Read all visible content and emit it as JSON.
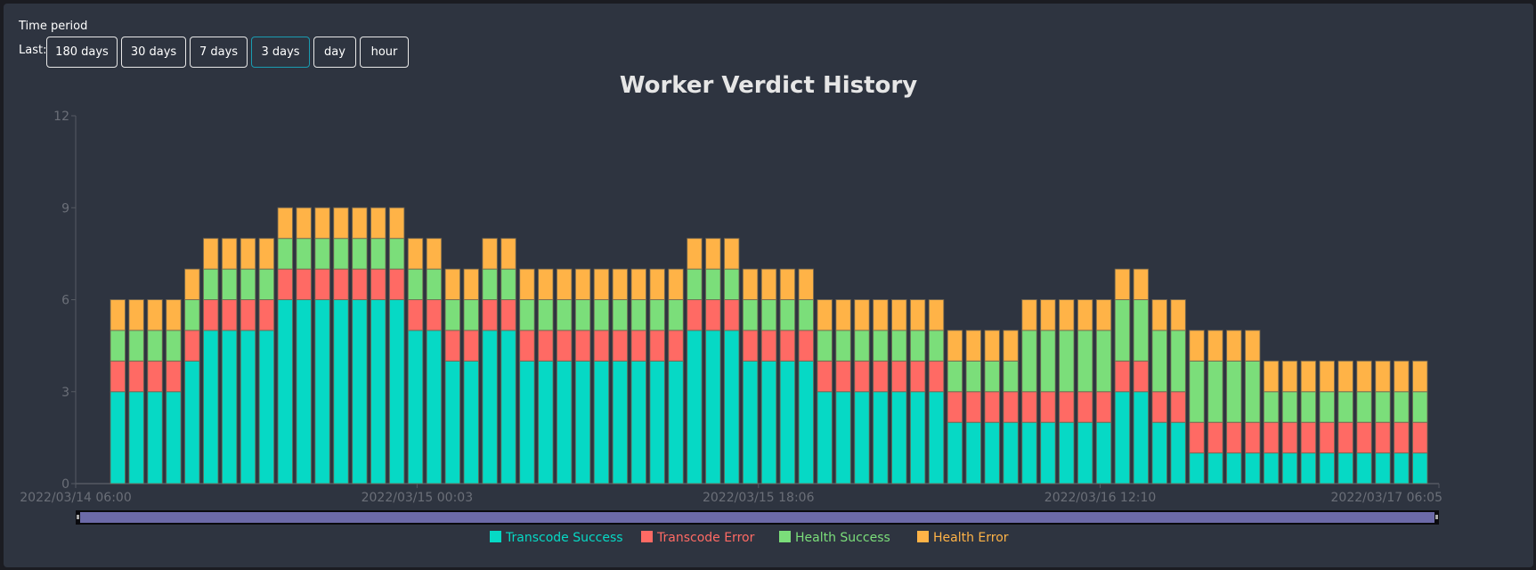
{
  "controls": {
    "time_period_label": "Time period",
    "last_label": "Last:",
    "buttons": [
      "180 days",
      "30 days",
      "7 days",
      "3 days",
      "day",
      "hour"
    ],
    "active_button": "3 days"
  },
  "colors": {
    "background": "#2e3440",
    "transcode_success": "#06d9c5",
    "transcode_error": "#ff6a64",
    "health_success": "#7bde7a",
    "health_error": "#ffb347",
    "zoom_slider": "#6c6aa8"
  },
  "chart_data": {
    "type": "bar",
    "stacked": true,
    "title": "Worker Verdict History",
    "xlabel": "",
    "ylabel": "",
    "ylim": [
      0,
      12
    ],
    "yticks": [
      0,
      3,
      6,
      9,
      12
    ],
    "x_range_hours": [
      0,
      72.083
    ],
    "xticks": [
      {
        "label": "2022/03/14 06:00",
        "hours": 0
      },
      {
        "label": "2022/03/15 00:03",
        "hours": 18.05
      },
      {
        "label": "2022/03/15 18:06",
        "hours": 36.1
      },
      {
        "label": "2022/03/16 12:10",
        "hours": 54.17
      },
      {
        "label": "2022/03/17 06:05",
        "hours": 72.083
      }
    ],
    "grid": false,
    "legend_position": "bottom",
    "series": [
      {
        "name": "Transcode Success",
        "color": "#06d9c5",
        "values": [
          3,
          3,
          3,
          3,
          4,
          5,
          5,
          5,
          5,
          6,
          6,
          6,
          6,
          6,
          6,
          6,
          5,
          5,
          4,
          4,
          5,
          5,
          4,
          4,
          4,
          4,
          4,
          4,
          4,
          4,
          4,
          5,
          5,
          5,
          4,
          4,
          4,
          4,
          3,
          3,
          3,
          3,
          3,
          3,
          3,
          2,
          2,
          2,
          2,
          2,
          2,
          2,
          2,
          2,
          3,
          3,
          2,
          2,
          1,
          1,
          1,
          1,
          1,
          1,
          1,
          1,
          1,
          1,
          1,
          1,
          1
        ]
      },
      {
        "name": "Transcode Error",
        "color": "#ff6a64",
        "values": [
          1,
          1,
          1,
          1,
          1,
          1,
          1,
          1,
          1,
          1,
          1,
          1,
          1,
          1,
          1,
          1,
          1,
          1,
          1,
          1,
          1,
          1,
          1,
          1,
          1,
          1,
          1,
          1,
          1,
          1,
          1,
          1,
          1,
          1,
          1,
          1,
          1,
          1,
          1,
          1,
          1,
          1,
          1,
          1,
          1,
          1,
          1,
          1,
          1,
          1,
          1,
          1,
          1,
          1,
          1,
          1,
          1,
          1,
          1,
          1,
          1,
          1,
          1,
          1,
          1,
          1,
          1,
          1,
          1,
          1,
          1
        ]
      },
      {
        "name": "Health Success",
        "color": "#7bde7a",
        "values": [
          1,
          1,
          1,
          1,
          1,
          1,
          1,
          1,
          1,
          1,
          1,
          1,
          1,
          1,
          1,
          1,
          1,
          1,
          1,
          1,
          1,
          1,
          1,
          1,
          1,
          1,
          1,
          1,
          1,
          1,
          1,
          1,
          1,
          1,
          1,
          1,
          1,
          1,
          1,
          1,
          1,
          1,
          1,
          1,
          1,
          1,
          1,
          1,
          1,
          2,
          2,
          2,
          2,
          2,
          2,
          2,
          2,
          2,
          2,
          2,
          2,
          2,
          1,
          1,
          1,
          1,
          1,
          1,
          1,
          1,
          1
        ]
      },
      {
        "name": "Health Error",
        "color": "#ffb347",
        "values": [
          1,
          1,
          1,
          1,
          1,
          1,
          1,
          1,
          1,
          1,
          1,
          1,
          1,
          1,
          1,
          1,
          1,
          1,
          1,
          1,
          1,
          1,
          1,
          1,
          1,
          1,
          1,
          1,
          1,
          1,
          1,
          1,
          1,
          1,
          1,
          1,
          1,
          1,
          1,
          1,
          1,
          1,
          1,
          1,
          1,
          1,
          1,
          1,
          1,
          1,
          1,
          1,
          1,
          1,
          1,
          1,
          1,
          1,
          1,
          1,
          1,
          1,
          1,
          1,
          1,
          1,
          1,
          1,
          1,
          1,
          1
        ]
      }
    ]
  }
}
